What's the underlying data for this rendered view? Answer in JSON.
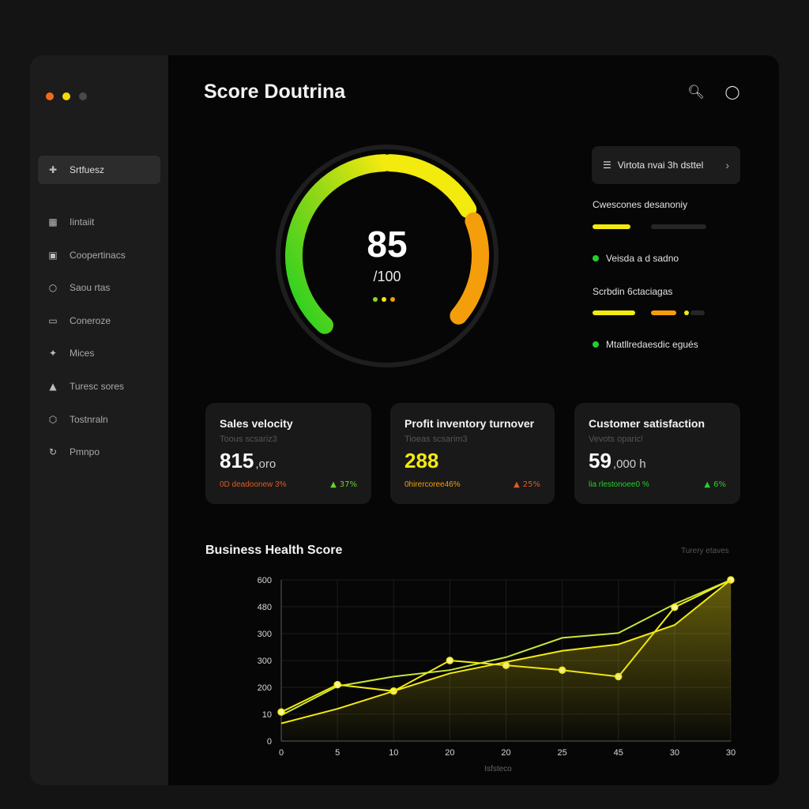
{
  "window": {
    "dot_colors": [
      "#f26a1b",
      "#f5d90a",
      "#4a4a4a"
    ]
  },
  "sidebar": {
    "items": [
      {
        "label": "Srtfuesz",
        "icon": "crosshair-icon",
        "active": true
      },
      {
        "label": "Iintaiit",
        "icon": "grid-icon"
      },
      {
        "label": "Coopertinacs",
        "icon": "briefcase-icon"
      },
      {
        "label": "Saou rtas",
        "icon": "chat-icon"
      },
      {
        "label": "Coneroze",
        "icon": "folder-icon"
      },
      {
        "label": "Mices",
        "icon": "users-icon"
      },
      {
        "label": "Turesc sores",
        "icon": "shield-icon"
      },
      {
        "label": "Tostnraln",
        "icon": "box-icon"
      },
      {
        "label": "Pmnpo",
        "icon": "refresh-icon"
      }
    ]
  },
  "header": {
    "title": "Score Doutrina",
    "icons": [
      "search-icon",
      "mouse-icon"
    ]
  },
  "gauge": {
    "score": "85",
    "max_label": "/100",
    "value": 85,
    "max": 100,
    "colors": [
      "#22d022",
      "#8ad618",
      "#f3ea0e",
      "#f59e0b"
    ]
  },
  "side_panel": {
    "detail_button": "Virtota nvai 3h dsttel",
    "metrics": [
      {
        "label": "Cwescones desanoniy",
        "bars": [
          {
            "value": 0.3,
            "color": "#f3ea0e"
          },
          {
            "value": 0.0,
            "color": "#2a2a2a"
          }
        ]
      },
      {
        "label": "Scrbdin   6ctaciagas",
        "bars": [
          {
            "value": 0.33,
            "color": "#f3ea0e"
          },
          {
            "value": 0.2,
            "color": "#f59e0b"
          },
          {
            "value": 0.05,
            "color": "#f3ea0e"
          }
        ]
      }
    ],
    "statuses": [
      "Veisda a d sadno",
      "Mtatllredaesdic egués"
    ]
  },
  "cards": [
    {
      "title": "Sales velocity",
      "subtitle": "Toous scsariz3",
      "value": "815",
      "unit": ",oro",
      "value_color": "#ffffff",
      "footer": "0D deadoonew 3%",
      "footer_color": "#e05a24",
      "delta": "37%",
      "delta_color": "#6ad12a"
    },
    {
      "title": "Profit inventory turnover",
      "subtitle": "Tioeas scsarim3",
      "value": "288",
      "unit": "",
      "value_color": "#f3ea0e",
      "footer": "0hirercoree46%",
      "footer_color": "#f59e0b",
      "delta": "25%",
      "delta_color": "#e05a24"
    },
    {
      "title": "Customer satisfaction",
      "subtitle": "Vevots oparic!",
      "value": "59",
      "unit": ",000 h",
      "value_color": "#ffffff",
      "footer": "lia rlestonoee0 %",
      "footer_color": "#22d02a",
      "delta": "6%",
      "delta_color": "#22d02a"
    }
  ],
  "chart_data": {
    "type": "line",
    "title": "Business Health Score",
    "legend_label": "Turery etaves",
    "xlabel": "Isfsteco",
    "ylabel": "",
    "x": [
      "0",
      "5",
      "10",
      "20",
      "20",
      "25",
      "45",
      "30",
      "30"
    ],
    "y_ticks": [
      "0",
      "10",
      "200",
      "300",
      "300",
      "480",
      "600"
    ],
    "grid": true,
    "series": [
      {
        "color": "#c7e63a",
        "values": [
          180,
          270,
          300,
          320,
          360,
          420,
          435,
          525,
          600
        ]
      },
      {
        "color": "#f3ea0e",
        "values": [
          190,
          275,
          255,
          350,
          335,
          320,
          300,
          515,
          600
        ],
        "markers": true
      },
      {
        "color": "#f3ea0e",
        "values": [
          155,
          200,
          255,
          310,
          345,
          380,
          400,
          460,
          600
        ],
        "area": true
      }
    ],
    "series_name_note_hidden": ""
  }
}
